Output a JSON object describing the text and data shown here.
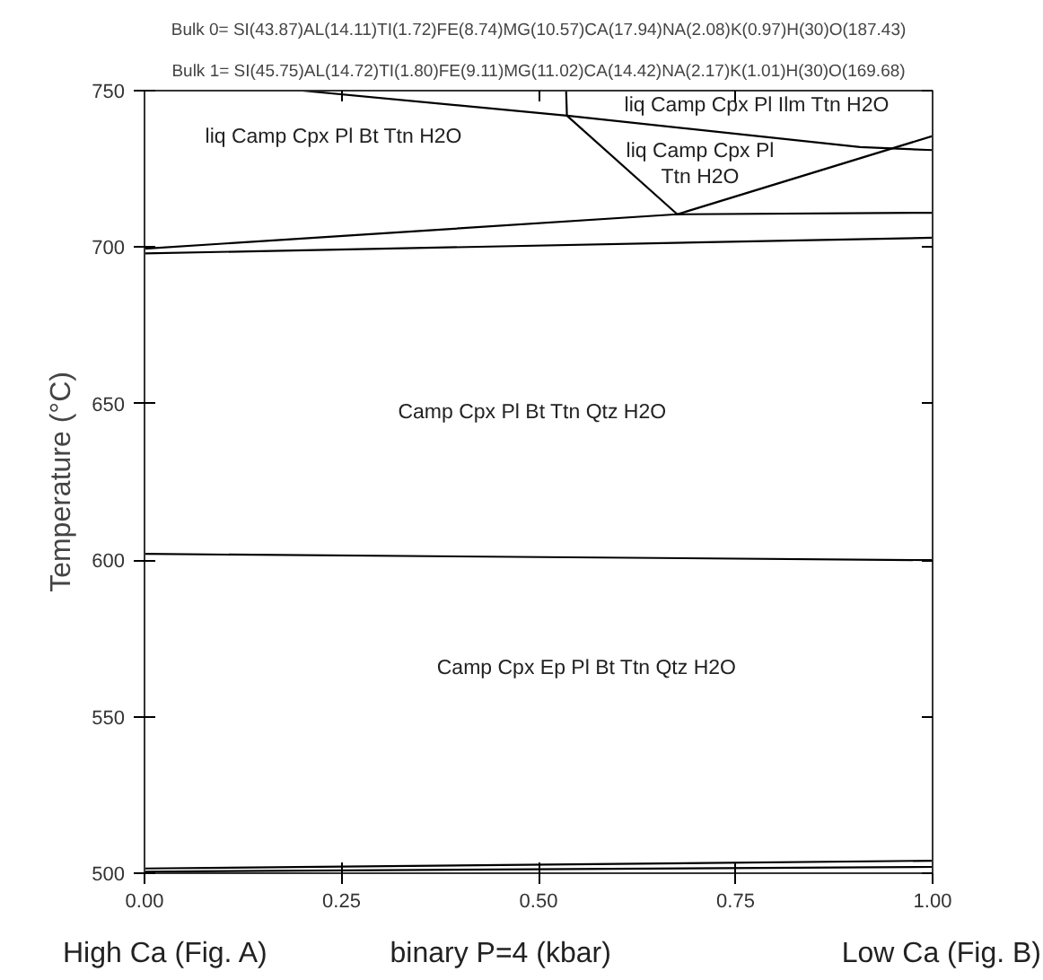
{
  "chart_data": {
    "type": "line",
    "title": "Bulk 0= SI(43.87)AL(14.11)TI(1.72)FE(8.74)MG(10.57)CA(17.94)NA(2.08)K(0.97)H(30)O(187.43)",
    "subtitle": "Bulk 1= SI(45.75)AL(14.72)TI(1.80)FE(9.11)MG(11.02)CA(14.42)NA(2.17)K(1.01)H(30)O(169.68)",
    "xlabel": "binary P=4 (kbar)",
    "ylabel": "Temperature (°C)",
    "xlim": [
      0,
      1
    ],
    "ylim": [
      500,
      750
    ],
    "xticks": [
      {
        "value": 0,
        "label": "0.00"
      },
      {
        "value": 0.25,
        "label": "0.25"
      },
      {
        "value": 0.5,
        "label": "0.50"
      },
      {
        "value": 0.75,
        "label": "0.75"
      },
      {
        "value": 1,
        "label": "1.00"
      }
    ],
    "yticks": [
      500,
      550,
      600,
      650,
      700,
      750
    ],
    "grid": false,
    "line_style": "solid",
    "series": [
      {
        "color": "#000000",
        "x": [
          0.2,
          0.536,
          0.908,
          1.0
        ],
        "values": [
          750,
          742,
          732,
          731
        ]
      },
      {
        "color": "#000000",
        "x": [
          0.535,
          0.536
        ],
        "values": [
          750,
          742
        ]
      },
      {
        "color": "#000000",
        "x": [
          0.536,
          0.676
        ],
        "values": [
          742,
          710.5
        ]
      },
      {
        "color": "#000000",
        "x": [
          0.676,
          1.0
        ],
        "values": [
          710.5,
          735.5
        ]
      },
      {
        "color": "#000000",
        "x": [
          0,
          0.676,
          1.0
        ],
        "values": [
          699.5,
          710.5,
          711
        ]
      },
      {
        "color": "#000000",
        "x": [
          0,
          1
        ],
        "values": [
          698,
          703
        ]
      },
      {
        "color": "#000000",
        "x": [
          0,
          1
        ],
        "values": [
          602,
          600
        ]
      },
      {
        "color": "#000000",
        "x": [
          0,
          1
        ],
        "values": [
          501.5,
          504
        ]
      },
      {
        "color": "#000000",
        "x": [
          0,
          1
        ],
        "values": [
          500.5,
          502
        ]
      }
    ],
    "annotations": [
      "liq Camp Cpx Pl Bt Ttn H2O",
      "liq Camp Cpx Pl Ilm Ttn H2O",
      "liq Camp Cpx Pl\nTtn H2O",
      "Camp Cpx Pl Bt Ttn Qtz H2O",
      "Camp Cpx Ep Pl Bt Ttn Qtz H2O",
      "High Ca (Fig. A)",
      "Low Ca (Fig. B)"
    ]
  }
}
